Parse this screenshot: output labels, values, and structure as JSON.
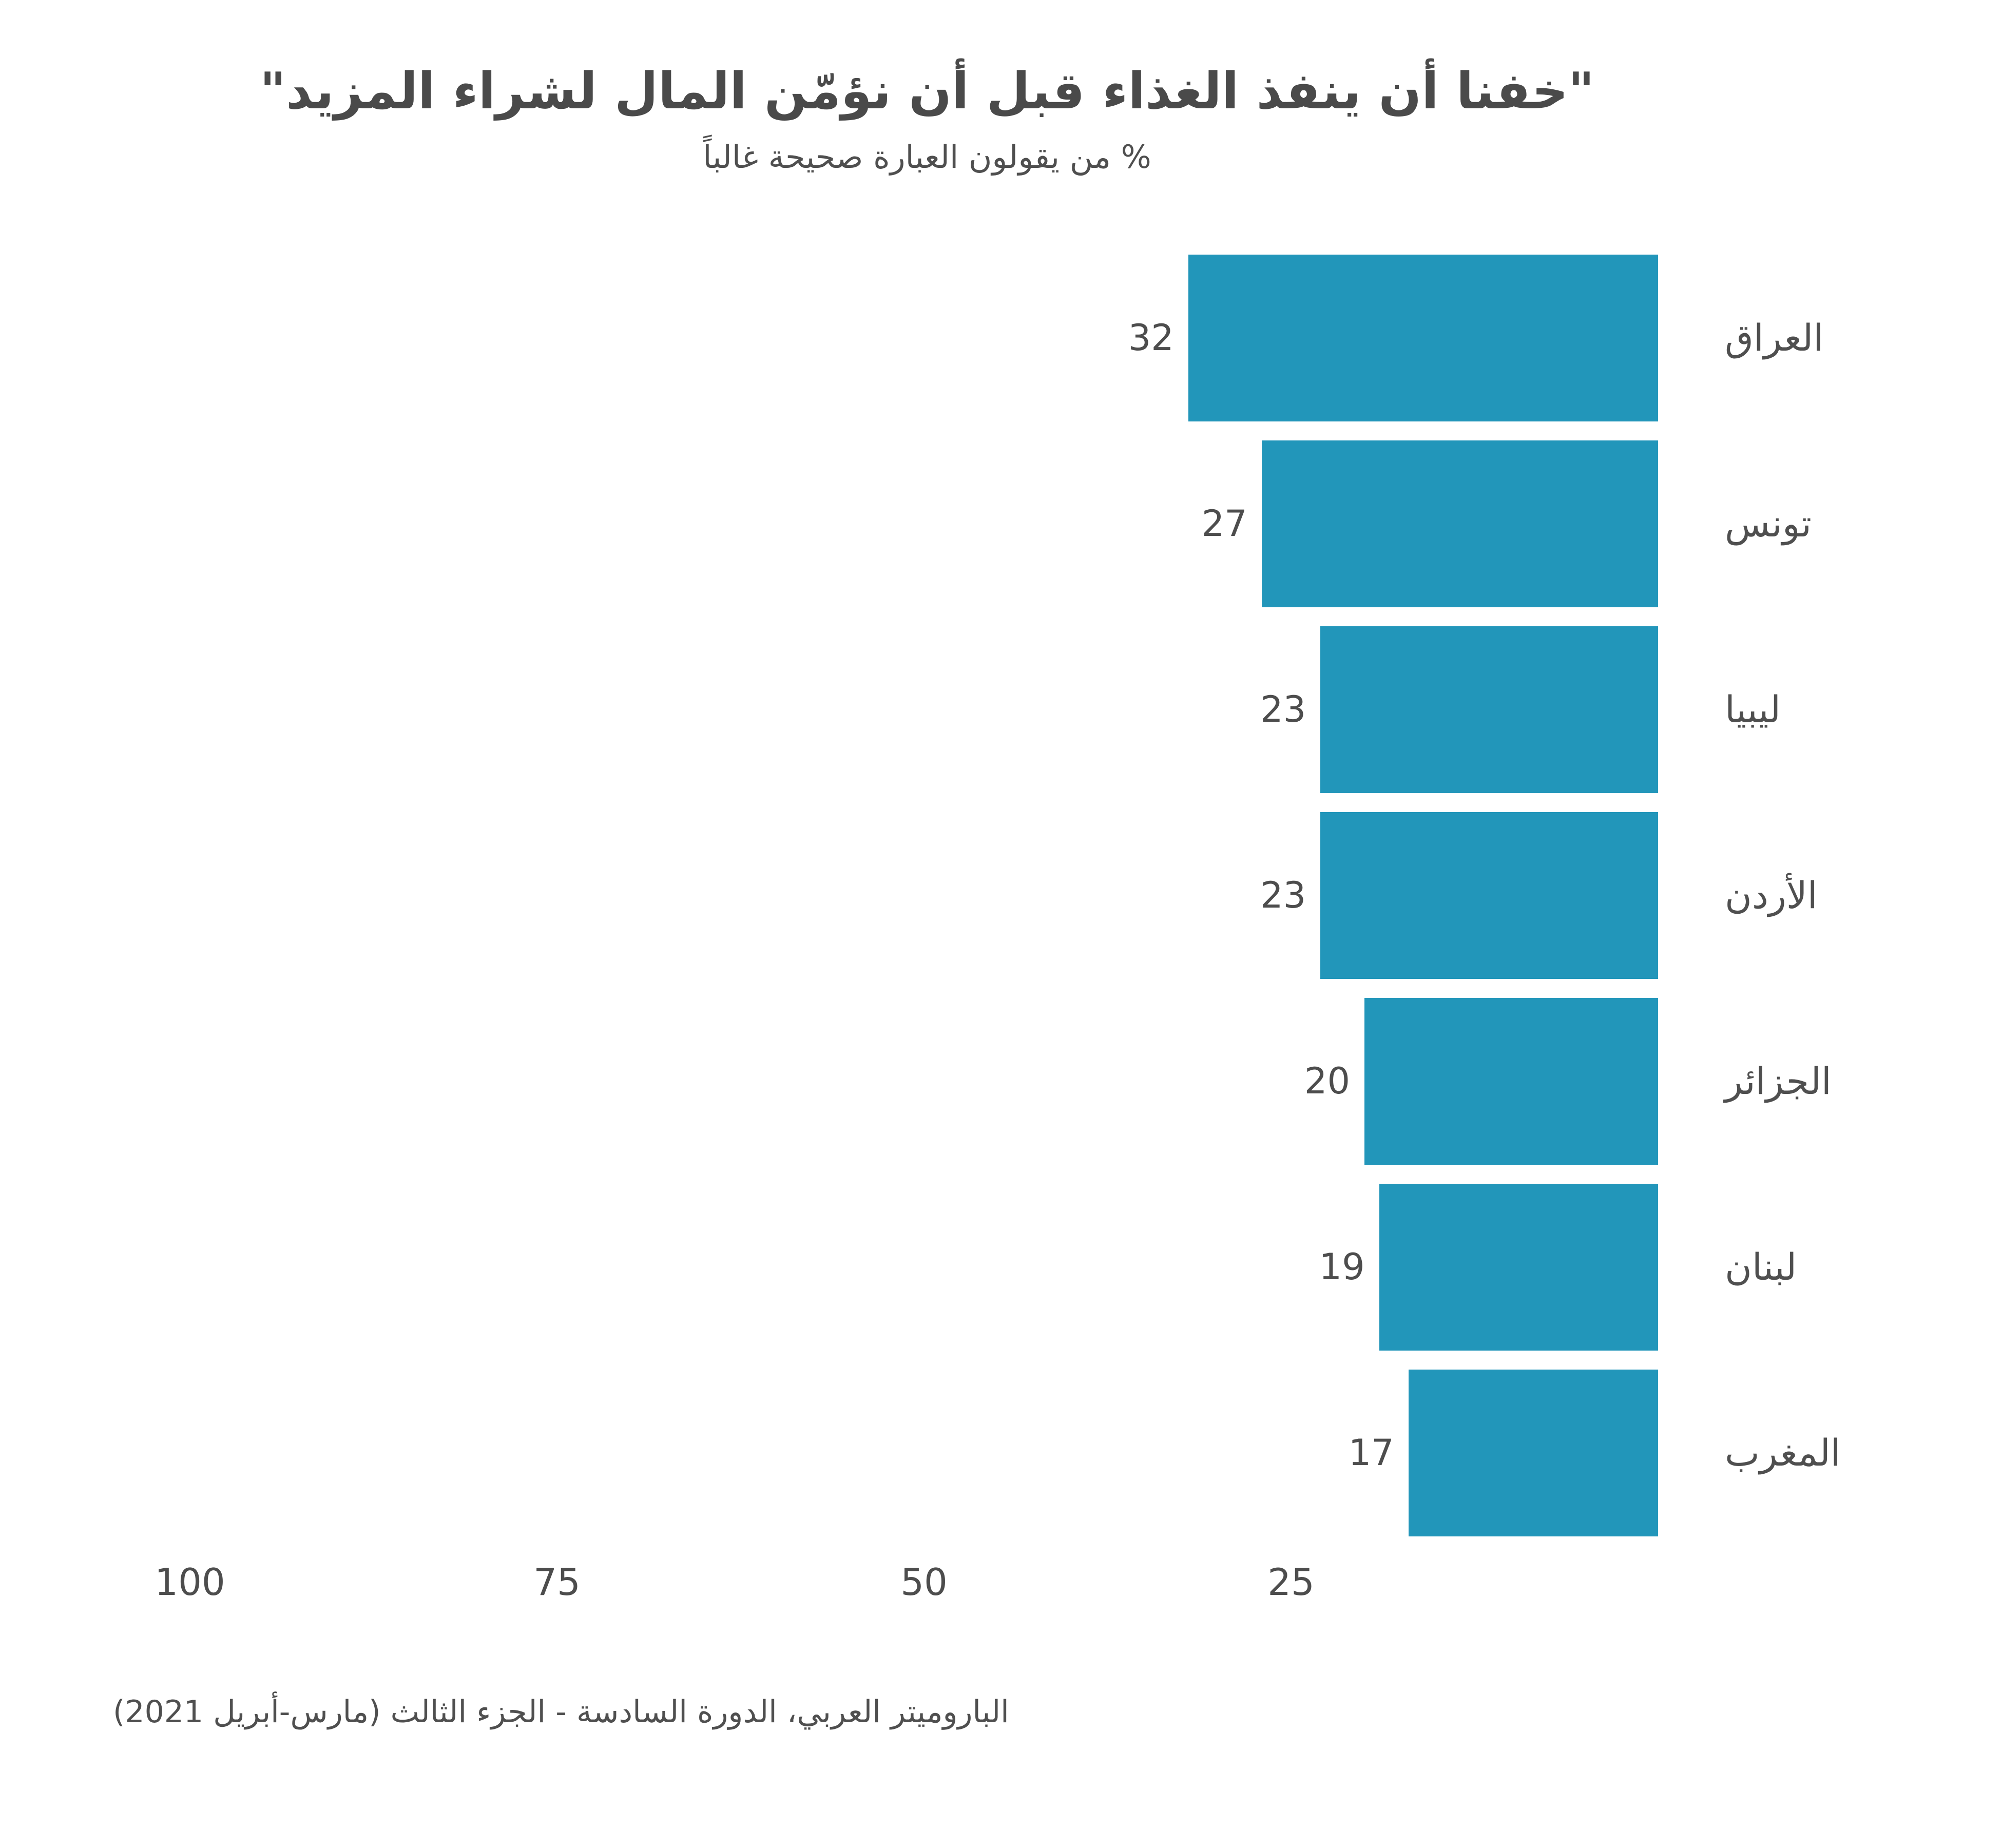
{
  "title": "\"خفنا أن ينفذ الغذاء قبل أن نؤمّن المال لشراء المزيد\"",
  "subtitle": "% من يقولون العبارة صحيحة غالباً",
  "source": "الباروميتر العربي، الدورة السادسة - الجزء الثالث (مارس-أبريل 2021)",
  "chart_data": {
    "type": "bar",
    "orientation": "horizontal-rtl",
    "categories": [
      "العراق",
      "تونس",
      "ليبيا",
      "الأردن",
      "الجزائر",
      "لبنان",
      "المغرب"
    ],
    "values": [
      32,
      27,
      23,
      23,
      20,
      19,
      17
    ],
    "value_labels_shown": true,
    "xticks": [
      100,
      75,
      50,
      25
    ],
    "xlim": [
      0,
      100
    ],
    "grid": false,
    "legend": "none",
    "bar_color": "#2296BA",
    "text_color": "#4d4d4d"
  }
}
